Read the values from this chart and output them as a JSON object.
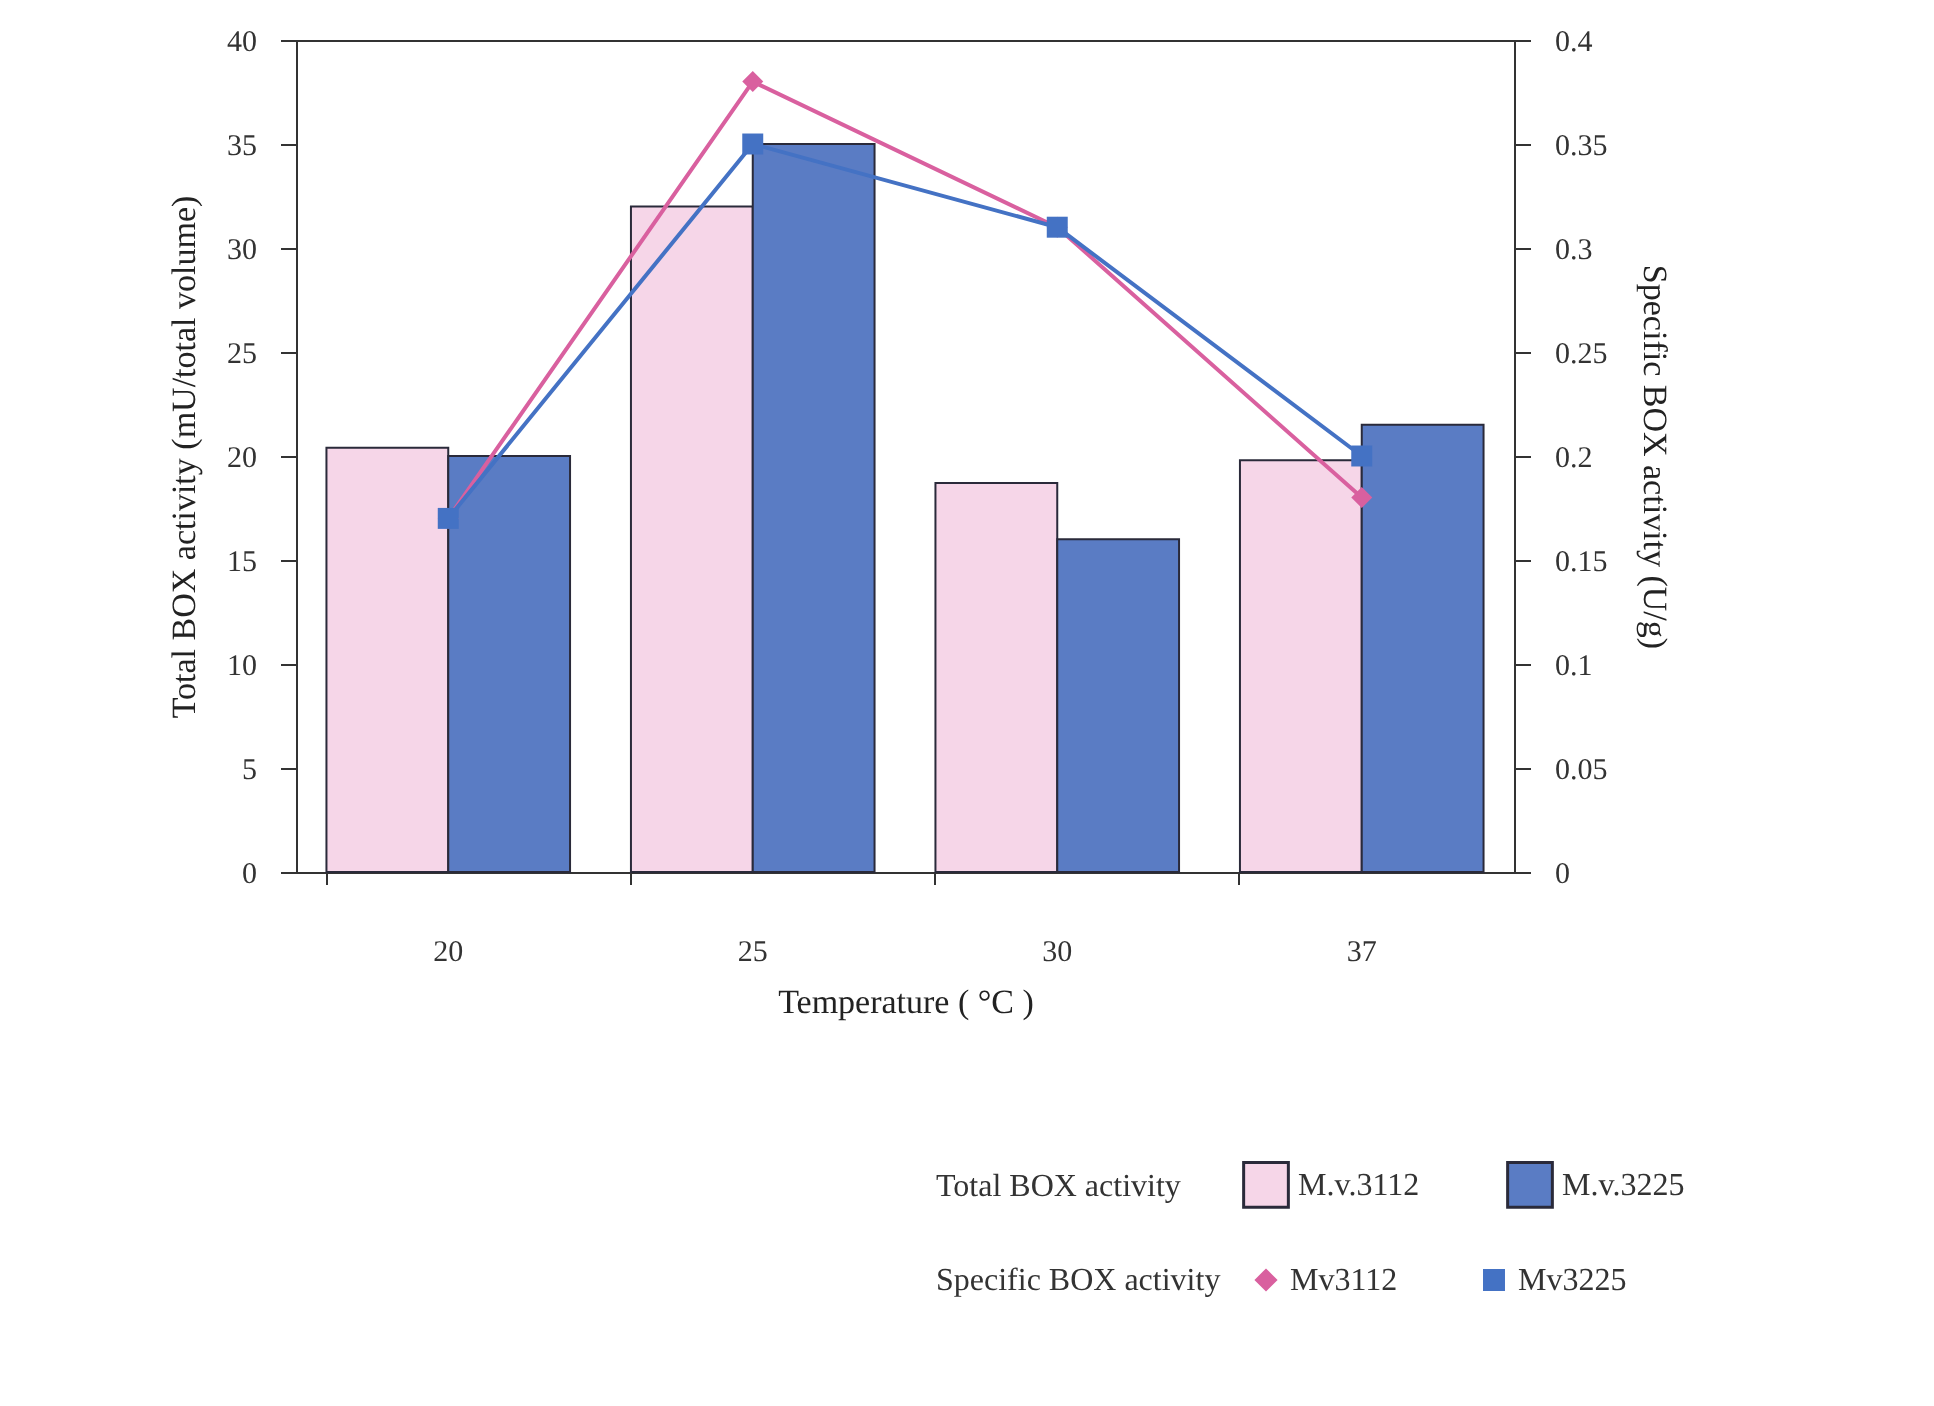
{
  "chart_data": {
    "type": "bar",
    "categories": [
      "20",
      "25",
      "30",
      "37"
    ],
    "xlabel": "Temperature ( °C )",
    "ylabel": "Total BOX activity (mU/total volume)",
    "y2label": "Specific BOX activity (U/g)",
    "ylim": [
      0,
      40
    ],
    "yticks": [
      0,
      5,
      10,
      15,
      20,
      25,
      30,
      35,
      40
    ],
    "y2lim": [
      0,
      0.4
    ],
    "y2ticks": [
      0,
      0.05,
      0.1,
      0.15,
      0.2,
      0.25,
      0.3,
      0.35,
      0.4
    ],
    "series": [
      {
        "name": "M.v.3112",
        "color": "#f6d6e8",
        "values": [
          20.4,
          32,
          18.7,
          19.8
        ]
      },
      {
        "name": "M.v.3225",
        "color": "#5a7cc4",
        "values": [
          20,
          35,
          16,
          21.5
        ]
      },
      {
        "name": "Mv3112",
        "type": "line",
        "axis": "y2",
        "marker": "diamond",
        "color": "#d9609f",
        "values": [
          0.17,
          0.38,
          0.31,
          0.18
        ]
      },
      {
        "name": "Mv3225",
        "type": "line",
        "axis": "y2",
        "marker": "square",
        "color": "#4472c4",
        "values": [
          0.17,
          0.35,
          0.31,
          0.2
        ]
      }
    ],
    "annotations": [
      "Total BOX activity",
      "Specific BOX activity"
    ],
    "legend": "bottom",
    "grid": false
  }
}
